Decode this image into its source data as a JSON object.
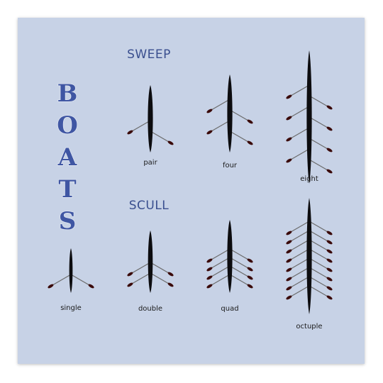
{
  "colors": {
    "background": "#c7d2e6",
    "title": "#3a4f8f",
    "letter_fill": "#3f56a3",
    "letter_stroke": "#e6ebf5",
    "hull": "#0c0c0f",
    "oar": "#6b6b6b",
    "blade": "#3a0a0a",
    "label": "#1a1a1a"
  },
  "sidebar": {
    "letters": [
      "B",
      "O",
      "A",
      "T",
      "S"
    ]
  },
  "sections": {
    "sweep": {
      "title": "SWEEP"
    },
    "scull": {
      "title": "SCULL"
    }
  },
  "boats": [
    {
      "id": "pair",
      "label": "pair",
      "type": "sweep",
      "rowers": 2
    },
    {
      "id": "four",
      "label": "four",
      "type": "sweep",
      "rowers": 4
    },
    {
      "id": "eight",
      "label": "eight",
      "type": "sweep",
      "rowers": 8
    },
    {
      "id": "single",
      "label": "single",
      "type": "scull",
      "rowers": 1
    },
    {
      "id": "double",
      "label": "double",
      "type": "scull",
      "rowers": 2
    },
    {
      "id": "quad",
      "label": "quad",
      "type": "scull",
      "rowers": 4
    },
    {
      "id": "octuple",
      "label": "octuple",
      "type": "scull",
      "rowers": 8
    }
  ]
}
